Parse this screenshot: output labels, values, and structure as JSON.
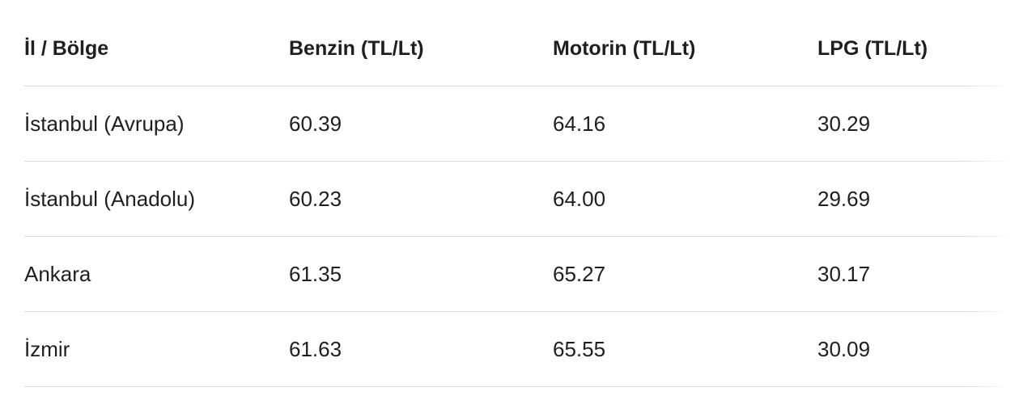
{
  "table": {
    "header": [
      "İl / Bölge",
      "Benzin (TL/Lt)",
      "Motorin (TL/Lt)",
      "LPG (TL/Lt)"
    ],
    "rows": [
      [
        "İstanbul (Avrupa)",
        "60.39",
        "64.16",
        "30.29"
      ],
      [
        "İstanbul (Anadolu)",
        "60.23",
        "64.00",
        "29.69"
      ],
      [
        "Ankara",
        "61.35",
        "65.27",
        "30.17"
      ],
      [
        "İzmir",
        "61.63",
        "65.55",
        "30.09"
      ]
    ]
  }
}
